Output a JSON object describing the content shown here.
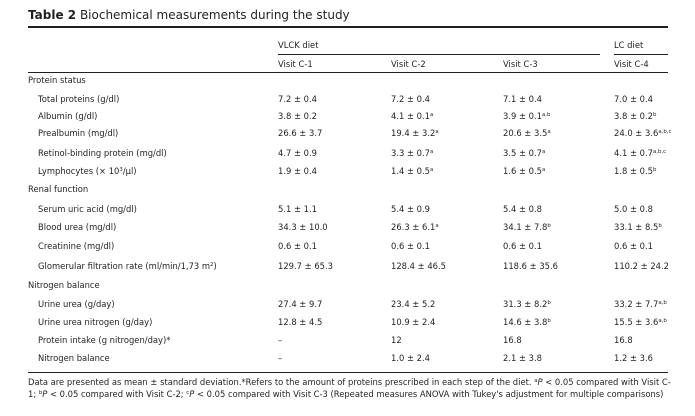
{
  "table": {
    "label": "Table 2",
    "title": "Biochemical measurements during the study",
    "group_headers": [
      "VLCK diet",
      "LC diet"
    ],
    "visit_headers": [
      "Visit C-1",
      "Visit C-2",
      "Visit C-3",
      "Visit C-4"
    ],
    "rows": [
      {
        "kind": "section",
        "label": "Protein status"
      },
      {
        "kind": "data",
        "label": "Total proteins (g/dl)",
        "cells": [
          [
            "7.2 ± 0.4",
            ""
          ],
          [
            "7.2 ± 0.4",
            ""
          ],
          [
            "7.1 ± 0.4",
            ""
          ],
          [
            "7.0 ± 0.4",
            ""
          ]
        ]
      },
      {
        "kind": "data",
        "label": "Albumin (g/dl)",
        "cells": [
          [
            "3.8 ± 0.2",
            ""
          ],
          [
            "4.1 ± 0.1",
            "a"
          ],
          [
            "3.9 ± 0.1",
            "a,b"
          ],
          [
            "3.8 ± 0.2",
            "b"
          ]
        ]
      },
      {
        "kind": "data",
        "label": "Prealbumin (mg/dl)",
        "cells": [
          [
            "26.6 ± 3.7",
            ""
          ],
          [
            "19.4 ± 3.2",
            "a"
          ],
          [
            "20.6 ± 3.5",
            "a"
          ],
          [
            "24.0 ± 3.6",
            "a,b,c"
          ]
        ]
      },
      {
        "kind": "data",
        "label": "Retinol-binding protein (mg/dl)",
        "cells": [
          [
            "4.7 ± 0.9",
            ""
          ],
          [
            "3.3 ± 0.7",
            "a"
          ],
          [
            "3.5 ± 0.7",
            "a"
          ],
          [
            "4.1 ± 0.7",
            "a,b,c"
          ]
        ]
      },
      {
        "kind": "data",
        "label_pre": "Lymphocytes (× 10",
        "label_sup": "3",
        "label_post": "/µl)",
        "cells": [
          [
            "1.9 ± 0.4",
            ""
          ],
          [
            "1.4 ± 0.5",
            "a"
          ],
          [
            "1.6 ± 0.5",
            "a"
          ],
          [
            "1.8 ± 0.5",
            "b"
          ]
        ]
      },
      {
        "kind": "section",
        "label": "Renal function"
      },
      {
        "kind": "data",
        "label": "Serum uric acid (mg/dl)",
        "cells": [
          [
            "5.1 ± 1.1",
            ""
          ],
          [
            "5.4 ± 0.9",
            ""
          ],
          [
            "5.4 ± 0.8",
            ""
          ],
          [
            "5.0 ± 0.8",
            ""
          ]
        ]
      },
      {
        "kind": "data",
        "label": "Blood urea (mg/dl)",
        "cells": [
          [
            "34.3 ± 10.0",
            ""
          ],
          [
            "26.3 ± 6.1",
            "a"
          ],
          [
            "34.1 ± 7.8",
            "b"
          ],
          [
            "33.1 ± 8.5",
            "b"
          ]
        ]
      },
      {
        "kind": "data",
        "label": "Creatinine (mg/dl)",
        "cells": [
          [
            "0.6 ± 0.1",
            ""
          ],
          [
            "0.6 ± 0.1",
            ""
          ],
          [
            "0.6 ± 0.1",
            ""
          ],
          [
            "0.6 ± 0.1",
            ""
          ]
        ]
      },
      {
        "kind": "data",
        "label_pre": "Glomerular filtration rate (ml/min/1,73 m",
        "label_sup": "2",
        "label_post": ")",
        "cells": [
          [
            "129.7 ± 65.3",
            ""
          ],
          [
            "128.4 ± 46.5",
            ""
          ],
          [
            "118.6 ± 35.6",
            ""
          ],
          [
            "110.2 ± 24.2",
            ""
          ]
        ]
      },
      {
        "kind": "section",
        "label": "Nitrogen balance"
      },
      {
        "kind": "data",
        "label": "Urine urea (g/day)",
        "cells": [
          [
            "27.4 ± 9.7",
            ""
          ],
          [
            "23.4 ± 5.2",
            ""
          ],
          [
            "31.3 ± 8.2",
            "b"
          ],
          [
            "33.2 ± 7.7",
            "a,b"
          ]
        ]
      },
      {
        "kind": "data",
        "label": "Urine urea nitrogen (g/day)",
        "cells": [
          [
            "12.8 ± 4.5",
            ""
          ],
          [
            "10.9 ± 2.4",
            ""
          ],
          [
            "14.6 ± 3.8",
            "b"
          ],
          [
            "15.5 ± 3.6",
            "a,b"
          ]
        ]
      },
      {
        "kind": "data",
        "label": "Protein intake (g nitrogen/day)*",
        "cells": [
          [
            "–",
            ""
          ],
          [
            "12",
            ""
          ],
          [
            "16.8",
            ""
          ],
          [
            "16.8",
            ""
          ]
        ]
      },
      {
        "kind": "data",
        "label": "Nitrogen balance",
        "cells": [
          [
            "–",
            ""
          ],
          [
            "1.0 ± 2.4",
            ""
          ],
          [
            "2.1 ± 3.8",
            ""
          ],
          [
            "1.2 ± 3.6",
            ""
          ]
        ]
      }
    ],
    "footnote": {
      "p1": "Data are presented as mean ± standard deviation.*Refers to the amount of proteins prescribed in each step of the diet. ",
      "sa": "a",
      "p2": "P",
      "p3": " < 0.05 compared with Visit C-1; ",
      "sb": "b",
      "p4": "P",
      "p5": " < 0.05 compared with Visit C-2; ",
      "sc": "c",
      "p6": "P",
      "p7": " < 0.05 compared with Visit C-3 (Repeated measures ANOVA with Tukey's adjustment for multiple comparisons)"
    }
  }
}
